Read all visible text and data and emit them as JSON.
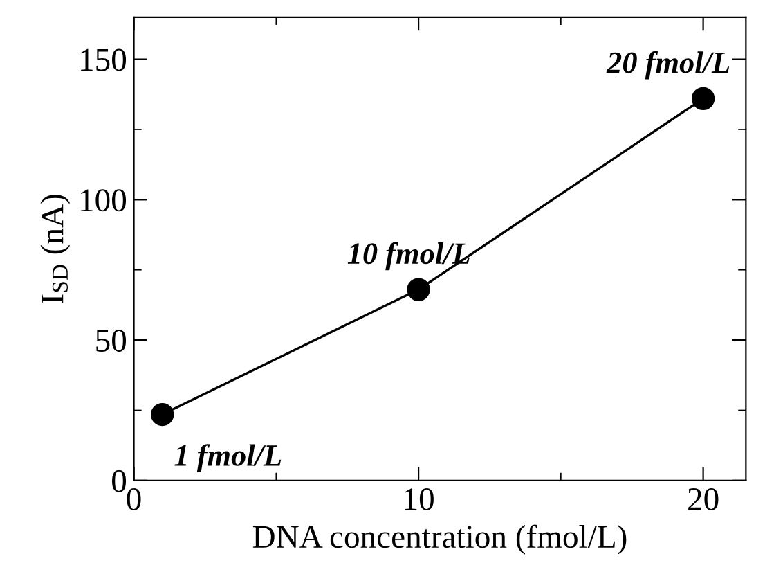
{
  "chart_data": {
    "type": "line",
    "xlabel": "DNA concentration (fmol/L)",
    "ylabel": "I$_{SD}$ (nA)",
    "x": [
      1,
      10,
      20
    ],
    "series": [
      {
        "color": "#000000",
        "values": [
          23.5,
          68,
          136
        ]
      }
    ],
    "marker": "circle",
    "line_style": "solid",
    "grid": false,
    "legend": false,
    "xlim": [
      0,
      21.5
    ],
    "xticks": [
      0,
      10,
      20
    ],
    "ylim": [
      0,
      165
    ],
    "yticks": [
      0,
      50,
      100,
      150
    ],
    "annotations": [
      {
        "text": "1 fmol/L",
        "x": 1,
        "y": 23.5
      },
      {
        "text": "10 fmol/L",
        "x": 10,
        "y": 68
      },
      {
        "text": "20 fmol/L",
        "x": 20,
        "y": 136
      }
    ]
  }
}
